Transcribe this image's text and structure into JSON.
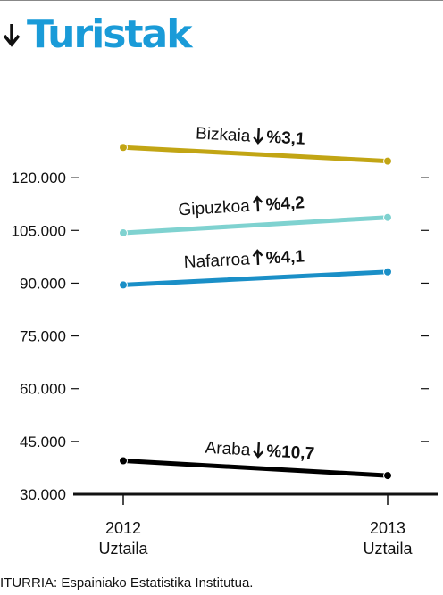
{
  "header": {
    "title": "Turistak"
  },
  "source": "ITURRIA: Espainiako Estatistika Institutua.",
  "chart_data": {
    "type": "line",
    "title": "Turistak",
    "x": [
      "2012",
      "2013"
    ],
    "x_ticks": [
      {
        "year": "2012",
        "month": "Uztaila"
      },
      {
        "year": "2013",
        "month": "Uztaila"
      }
    ],
    "y_ticks": [
      30000,
      45000,
      60000,
      75000,
      90000,
      105000,
      120000
    ],
    "y_tick_labels": [
      "30.000",
      "45.000",
      "60.000",
      "75.000",
      "90.000",
      "105.000",
      "120.000"
    ],
    "ylim": [
      30000,
      135000
    ],
    "grid": false,
    "series": [
      {
        "name": "Bizkaia",
        "values": [
          128600,
          124700
        ],
        "change": "%3,1",
        "direction": "down",
        "color": "#c2a514"
      },
      {
        "name": "Gipuzkoa",
        "values": [
          104300,
          108700
        ],
        "change": "%4,2",
        "direction": "up",
        "color": "#7fd2d0"
      },
      {
        "name": "Nafarroa",
        "values": [
          89500,
          93200
        ],
        "change": "%4,1",
        "direction": "up",
        "color": "#1a8fc7"
      },
      {
        "name": "Araba",
        "values": [
          39500,
          35300
        ],
        "change": "%10,7",
        "direction": "down",
        "color": "#000000"
      }
    ]
  }
}
